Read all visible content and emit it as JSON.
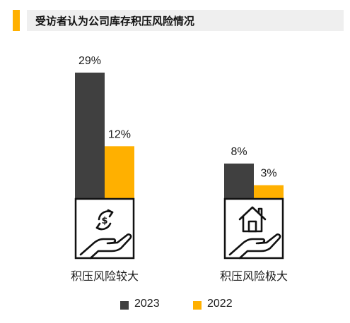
{
  "header": {
    "title": "受访者认为公司库存积压风险情况"
  },
  "colors": {
    "accent": "#FFB000",
    "series_2023": "#404040",
    "series_2022": "#FFB000",
    "title_bg": "#EFEFEF"
  },
  "chart_data": {
    "type": "bar",
    "title": "受访者认为公司库存积压风险情况",
    "categories": [
      "积压风险较大",
      "积压风险极大"
    ],
    "category_icons": [
      "hand-dollar-cycle-icon",
      "hand-house-icon"
    ],
    "series": [
      {
        "name": "2023",
        "values": [
          29,
          8
        ],
        "labels": [
          "29%",
          "8%"
        ],
        "color": "#404040"
      },
      {
        "name": "2022",
        "values": [
          12,
          3
        ],
        "labels": [
          "12%",
          "3%"
        ],
        "color": "#FFB000"
      }
    ],
    "unit": "%",
    "ylim": [
      0,
      29
    ],
    "grid": false,
    "legend_position": "bottom"
  }
}
